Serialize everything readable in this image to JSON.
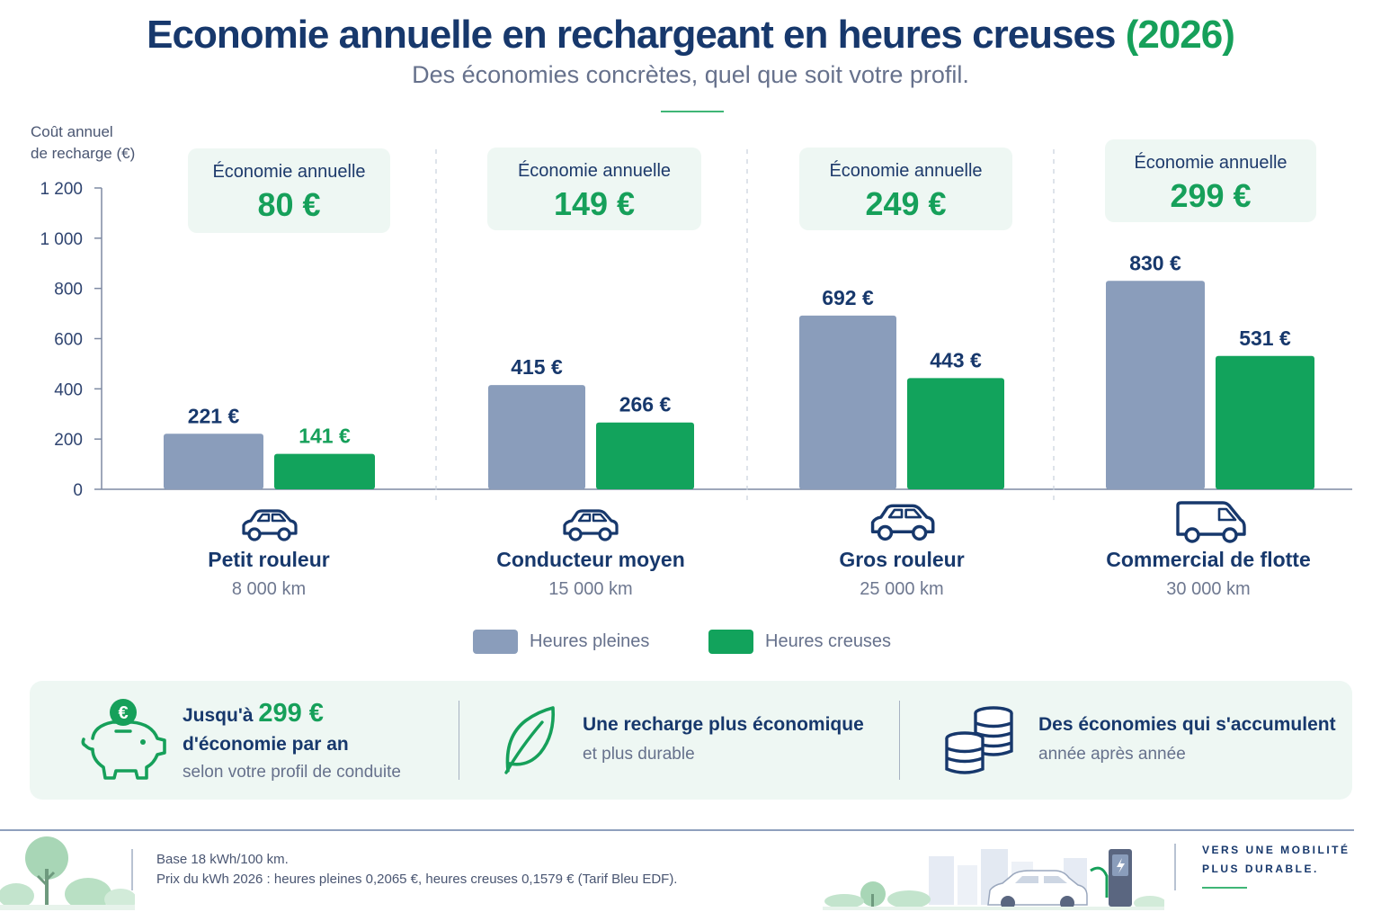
{
  "header": {
    "title": "Economie annuelle en rechargeant en heures creuses",
    "title_year": "(2026)",
    "subtitle": "Des économies concrètes, quel que soit votre profil."
  },
  "colors": {
    "peak": "#8a9dbb",
    "offpeak": "#12a35c",
    "navy": "#17386c",
    "accent": "#16a05a"
  },
  "chart_data": {
    "type": "bar",
    "ylabel_line1": "Coût annuel",
    "ylabel_line2": "de recharge (€)",
    "ylim": [
      0,
      1200
    ],
    "ticks": [
      0,
      200,
      400,
      600,
      800,
      1000,
      1200
    ],
    "tick_labels": [
      "0",
      "200",
      "400",
      "600",
      "800",
      "1 000",
      "1 200"
    ],
    "categories": [
      "Petit rouleur",
      "Conducteur moyen",
      "Gros rouleur",
      "Commercial de flotte"
    ],
    "series": [
      {
        "name": "Heures pleines",
        "values": [
          221,
          415,
          692,
          830
        ],
        "labels": [
          "221 €",
          "415 €",
          "692 €",
          "830 €"
        ]
      },
      {
        "name": "Heures creuses",
        "values": [
          141,
          266,
          443,
          531
        ],
        "labels": [
          "141 €",
          "266 €",
          "443 €",
          "531 €"
        ]
      }
    ],
    "grid": false,
    "legend_position": "bottom"
  },
  "groups": [
    {
      "name": "Petit rouleur",
      "km": "8 000 km",
      "saving_label": "Économie annuelle",
      "saving": "80 €",
      "icon": "car-icon"
    },
    {
      "name": "Conducteur moyen",
      "km": "15 000 km",
      "saving_label": "Économie annuelle",
      "saving": "149 €",
      "icon": "car-icon"
    },
    {
      "name": "Gros rouleur",
      "km": "25 000 km",
      "saving_label": "Économie annuelle",
      "saving": "249 €",
      "icon": "car-icon"
    },
    {
      "name": "Commercial de flotte",
      "km": "30 000 km",
      "saving_label": "Économie annuelle",
      "saving": "299 €",
      "icon": "van-icon"
    }
  ],
  "legend": {
    "peak": "Heures pleines",
    "offpeak": "Heures creuses"
  },
  "highlights": [
    {
      "icon": "piggy-bank-euro-icon",
      "title_prefix": "Jusqu'à",
      "title_value": "299 €",
      "title_rest": "d'économie par an",
      "sub": "selon votre profil de conduite"
    },
    {
      "icon": "leaf-icon",
      "title": "Une recharge plus économique",
      "sub": "et plus durable"
    },
    {
      "icon": "coin-stack-icon",
      "title": "Des économies qui s'accumulent",
      "sub": "année après année"
    }
  ],
  "footer": {
    "note1": "Base 18 kWh/100 km.",
    "note2": "Prix du kWh 2026 : heures pleines 0,2065 €, heures creuses 0,1579 € (Tarif Bleu EDF).",
    "tag1": "VERS UNE MOBILITÉ",
    "tag2": "PLUS DURABLE."
  }
}
